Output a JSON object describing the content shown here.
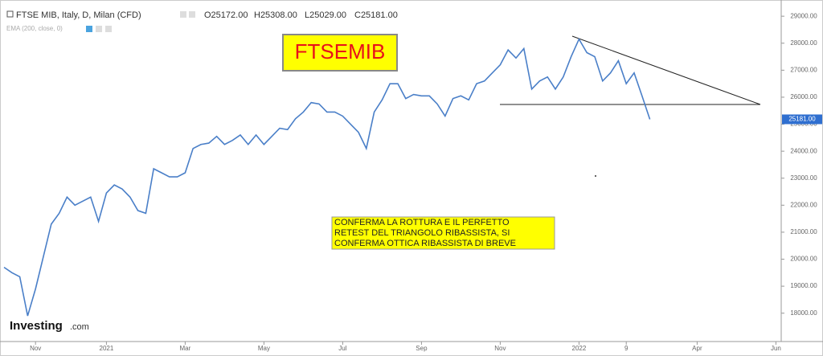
{
  "header": {
    "symbol": "FTSE MIB, Italy, D, Milan (CFD)",
    "open": "O25172.00",
    "high": "H25308.00",
    "low": "L25029.00",
    "close": "C25181.00",
    "indicator": "EMA (200, close, 0)"
  },
  "logo": {
    "name": "Investing",
    "suffix": ".com"
  },
  "chart_data": {
    "type": "line",
    "title": "FTSEMIB",
    "annotation": [
      "CONFERMA LA ROTTURA E IL PERFETTO",
      "RETEST DEL TRIANGOLO RIBASSISTA, SI",
      "CONFERMA OTTICA RIBASSISTA DI BREVE"
    ],
    "categories": [
      null,
      null,
      null,
      null,
      "Nov",
      null,
      null,
      null,
      null,
      null,
      null,
      null,
      null,
      "2021",
      null,
      null,
      null,
      null,
      null,
      null,
      null,
      null,
      null,
      "Mar",
      null,
      null,
      null,
      null,
      null,
      null,
      null,
      null,
      null,
      "May",
      null,
      null,
      null,
      null,
      null,
      null,
      null,
      null,
      null,
      "Jul",
      null,
      null,
      null,
      null,
      null,
      null,
      null,
      null,
      null,
      "Sep",
      null,
      null,
      null,
      null,
      null,
      null,
      null,
      null,
      null,
      "Nov",
      null,
      null,
      null,
      null,
      null,
      null,
      null,
      null,
      null,
      "2022",
      null,
      null,
      null,
      null,
      null,
      "9",
      null,
      null,
      null,
      null,
      null,
      null,
      null,
      null,
      "Apr",
      null,
      null,
      null,
      null,
      null,
      null,
      null,
      null,
      null,
      "Jun"
    ],
    "series": [
      {
        "name": "FTSE MIB",
        "color": "#4a7fc8",
        "values": [
          19700,
          19500,
          19350,
          17900,
          18900,
          20100,
          21300,
          21700,
          22300,
          22000,
          22150,
          22300,
          21400,
          22450,
          22750,
          22600,
          22300,
          21800,
          21700,
          23350,
          23200,
          23050,
          23050,
          23200,
          24100,
          24250,
          24300,
          24550,
          24250,
          24400,
          24600,
          24250,
          24600,
          24250,
          24550,
          24850,
          24800,
          25200,
          25450,
          25800,
          25750,
          25450,
          25450,
          25300,
          25000,
          24700,
          24100,
          25450,
          25900,
          26500,
          26500,
          25950,
          26100,
          26050,
          26050,
          25750,
          25300,
          25950,
          26050,
          25900,
          26500,
          26600,
          26900,
          27200,
          27750,
          27450,
          27800,
          26300,
          26600,
          26750,
          26300,
          26750,
          27500,
          28150,
          27650,
          27500,
          26600,
          26900,
          27350,
          26500,
          26900,
          26050,
          25181,
          null,
          null,
          null,
          null,
          null,
          null,
          null,
          null,
          null,
          null,
          null,
          null,
          null,
          null,
          null,
          null
        ]
      }
    ],
    "last_price": {
      "value": 25181,
      "label": "25181.00"
    },
    "ylim": [
      16950,
      29600
    ],
    "yticks": [
      {
        "value": 18000,
        "label": "18000.00"
      },
      {
        "value": 19000,
        "label": "19000.00"
      },
      {
        "value": 20000,
        "label": "20000.00"
      },
      {
        "value": 21000,
        "label": "21000.00"
      },
      {
        "value": 22000,
        "label": "22000.00"
      },
      {
        "value": 23000,
        "label": "23000.00"
      },
      {
        "value": 24000,
        "label": "24000.00"
      },
      {
        "value": 25000,
        "label": "25000.00"
      },
      {
        "value": 26000,
        "label": "26000.00"
      },
      {
        "value": 27000,
        "label": "27000.00"
      },
      {
        "value": 28000,
        "label": "28000.00"
      },
      {
        "value": 29000,
        "label": "29000.00"
      }
    ],
    "grid": false
  }
}
